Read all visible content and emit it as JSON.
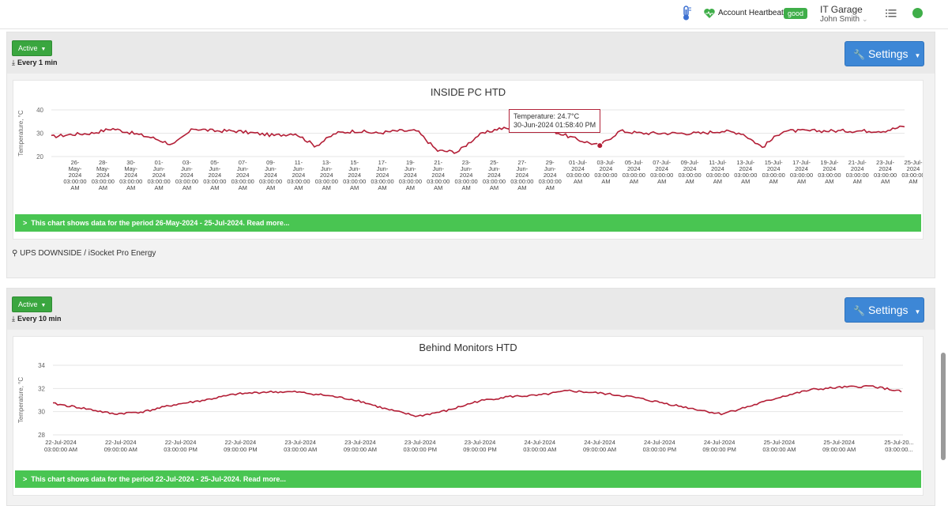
{
  "header": {
    "heartbeat_label": "Account Heartbeat",
    "heartbeat_status": "good",
    "org_name": "IT Garage",
    "user_name": "John Smith"
  },
  "panels": [
    {
      "status_label": "Active",
      "interval_label": "Every 1 min",
      "settings_label": "Settings",
      "info_text": "This chart shows data for the period 26-May-2024 - 25-Jul-2024. Read more...",
      "location_text": "UPS DOWNSIDE / iSocket Pro Energy",
      "tooltip": {
        "line1": "Temperature: 24.7°C",
        "line2": "30-Jun-2024 01:58:40 PM"
      }
    },
    {
      "status_label": "Active",
      "interval_label": "Every 10 min",
      "settings_label": "Settings",
      "info_text": "This chart shows data for the period 22-Jul-2024 - 25-Jul-2024. Read more..."
    }
  ],
  "colors": {
    "series": "#b31e36",
    "accent_green": "#49c552",
    "button_blue": "#3d87d6"
  },
  "chart_data": [
    {
      "type": "line",
      "title": "INSIDE PC HTD",
      "ylabel": "Temperature, °C",
      "ylim": [
        20,
        40
      ],
      "yticks": [
        20,
        30,
        40
      ],
      "x_tick_lines": [
        [
          "26-",
          "May-",
          "2024",
          "03:00:00",
          "AM"
        ],
        [
          "28-",
          "May-",
          "2024",
          "03:00:00",
          "AM"
        ],
        [
          "30-",
          "May-",
          "2024",
          "03:00:00",
          "AM"
        ],
        [
          "01-",
          "Jun-",
          "2024",
          "03:00:00",
          "AM"
        ],
        [
          "03-",
          "Jun-",
          "2024",
          "03:00:00",
          "AM"
        ],
        [
          "05-",
          "Jun-",
          "2024",
          "03:00:00",
          "AM"
        ],
        [
          "07-",
          "Jun-",
          "2024",
          "03:00:00",
          "AM"
        ],
        [
          "09-",
          "Jun-",
          "2024",
          "03:00:00",
          "AM"
        ],
        [
          "11-",
          "Jun-",
          "2024",
          "03:00:00",
          "AM"
        ],
        [
          "13-",
          "Jun-",
          "2024",
          "03:00:00",
          "AM"
        ],
        [
          "15-",
          "Jun-",
          "2024",
          "03:00:00",
          "AM"
        ],
        [
          "17-",
          "Jun-",
          "2024",
          "03:00:00",
          "AM"
        ],
        [
          "19-",
          "Jun-",
          "2024",
          "03:00:00",
          "AM"
        ],
        [
          "21-",
          "Jun-",
          "2024",
          "03:00:00",
          "AM"
        ],
        [
          "23-",
          "Jun-",
          "2024",
          "03:00:00",
          "AM"
        ],
        [
          "25-",
          "Jun-",
          "2024",
          "03:00:00",
          "AM"
        ],
        [
          "27-",
          "Jun-",
          "2024",
          "03:00:00",
          "AM"
        ],
        [
          "29-",
          "Jun-",
          "2024",
          "03:00:00",
          "AM"
        ],
        [
          "01-Jul-",
          "2024",
          "03:00:00",
          "AM"
        ],
        [
          "03-Jul-",
          "2024",
          "03:00:00",
          "AM"
        ],
        [
          "05-Jul-",
          "2024",
          "03:00:00",
          "AM"
        ],
        [
          "07-Jul-",
          "2024",
          "03:00:00",
          "AM"
        ],
        [
          "09-Jul-",
          "2024",
          "03:00:00",
          "AM"
        ],
        [
          "11-Jul-",
          "2024",
          "03:00:00",
          "AM"
        ],
        [
          "13-Jul-",
          "2024",
          "03:00:00",
          "AM"
        ],
        [
          "15-Jul-",
          "2024",
          "03:00:00",
          "AM"
        ],
        [
          "17-Jul-",
          "2024",
          "03:00:00",
          "AM"
        ],
        [
          "19-Jul-",
          "2024",
          "03:00:00",
          "AM"
        ],
        [
          "21-Jul-",
          "2024",
          "03:00:00",
          "AM"
        ],
        [
          "23-Jul-",
          "2024",
          "03:00:00",
          "AM"
        ],
        [
          "25-Jul-",
          "2024",
          "03:00:00",
          "AM"
        ]
      ],
      "x": [
        "2024-05-26",
        "2024-05-27",
        "2024-05-28",
        "2024-05-29",
        "2024-05-30",
        "2024-06-01",
        "2024-06-03",
        "2024-06-04",
        "2024-06-05",
        "2024-06-07",
        "2024-06-09",
        "2024-06-11",
        "2024-06-12",
        "2024-06-13",
        "2024-06-14",
        "2024-06-15",
        "2024-06-17",
        "2024-06-19",
        "2024-06-20",
        "2024-06-21",
        "2024-06-23",
        "2024-06-24",
        "2024-06-25",
        "2024-06-26",
        "2024-06-27",
        "2024-06-28",
        "2024-06-29",
        "2024-06-30",
        "2024-07-01",
        "2024-07-02",
        "2024-07-03",
        "2024-07-05",
        "2024-07-07",
        "2024-07-09",
        "2024-07-10",
        "2024-07-11",
        "2024-07-13",
        "2024-07-15",
        "2024-07-17",
        "2024-07-19",
        "2024-07-21",
        "2024-07-23",
        "2024-07-25"
      ],
      "series": [
        {
          "values": [
            28.5,
            29.5,
            30,
            32,
            30,
            28,
            25,
            32,
            31,
            31,
            30,
            29,
            30,
            24.5,
            30,
            31,
            30,
            31,
            31,
            22.5,
            22,
            29,
            32,
            32,
            33,
            30,
            27,
            24.7,
            31,
            30,
            30,
            30,
            30,
            31,
            30,
            24,
            31,
            31,
            31,
            31,
            31,
            31,
            33
          ]
        }
      ],
      "grid": true
    },
    {
      "type": "line",
      "title": "Behind Monitors HTD",
      "ylabel": "Temperature, °C",
      "ylim": [
        28,
        34
      ],
      "yticks": [
        28,
        30,
        32,
        34
      ],
      "x_tick_lines": [
        [
          "22-Jul-2024",
          "03:00:00 AM"
        ],
        [
          "22-Jul-2024",
          "09:00:00 AM"
        ],
        [
          "22-Jul-2024",
          "03:00:00 PM"
        ],
        [
          "22-Jul-2024",
          "09:00:00 PM"
        ],
        [
          "23-Jul-2024",
          "03:00:00 AM"
        ],
        [
          "23-Jul-2024",
          "09:00:00 AM"
        ],
        [
          "23-Jul-2024",
          "03:00:00 PM"
        ],
        [
          "23-Jul-2024",
          "09:00:00 PM"
        ],
        [
          "24-Jul-2024",
          "03:00:00 AM"
        ],
        [
          "24-Jul-2024",
          "09:00:00 AM"
        ],
        [
          "24-Jul-2024",
          "03:00:00 PM"
        ],
        [
          "24-Jul-2024",
          "09:00:00 PM"
        ],
        [
          "25-Jul-2024",
          "03:00:00 AM"
        ],
        [
          "25-Jul-2024",
          "09:00:00 AM"
        ],
        [
          "25-Jul-20...",
          "03:00:00..."
        ]
      ],
      "x": [
        "22-Jul 03:00",
        "22-Jul 06:00",
        "22-Jul 09:00",
        "22-Jul 12:00",
        "22-Jul 15:00",
        "22-Jul 18:00",
        "22-Jul 21:00",
        "23-Jul 00:00",
        "23-Jul 03:00",
        "23-Jul 06:00",
        "23-Jul 09:00",
        "23-Jul 12:00",
        "23-Jul 15:00",
        "23-Jul 18:00",
        "23-Jul 21:00",
        "24-Jul 00:00",
        "24-Jul 03:00",
        "24-Jul 06:00",
        "24-Jul 09:00",
        "24-Jul 12:00",
        "24-Jul 15:00",
        "24-Jul 18:00",
        "24-Jul 21:00",
        "25-Jul 00:00",
        "25-Jul 03:00",
        "25-Jul 06:00",
        "25-Jul 09:00",
        "25-Jul 12:00",
        "25-Jul 15:00"
      ],
      "series": [
        {
          "values": [
            30.7,
            30.3,
            29.8,
            30.0,
            30.6,
            31.0,
            31.5,
            31.7,
            31.7,
            31.4,
            31.0,
            30.2,
            29.6,
            30.1,
            30.9,
            31.3,
            31.4,
            31.8,
            31.6,
            31.3,
            30.8,
            30.3,
            29.8,
            30.5,
            31.3,
            31.9,
            32.1,
            32.2,
            31.7
          ]
        }
      ],
      "grid": true
    }
  ]
}
